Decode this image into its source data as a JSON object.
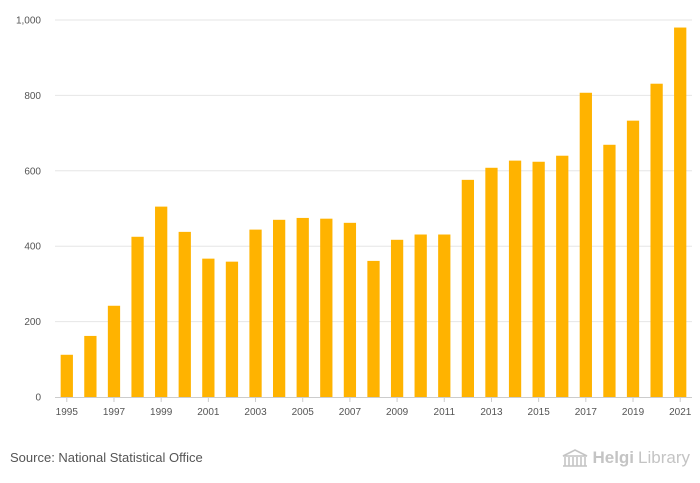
{
  "chart_data": {
    "type": "bar",
    "title": "",
    "xlabel": "",
    "ylabel": "",
    "categories": [
      "1995",
      "1996",
      "1997",
      "1998",
      "1999",
      "2000",
      "2001",
      "2002",
      "2003",
      "2004",
      "2005",
      "2006",
      "2007",
      "2008",
      "2009",
      "2010",
      "2011",
      "2012",
      "2013",
      "2014",
      "2015",
      "2016",
      "2017",
      "2018",
      "2019",
      "2020",
      "2021"
    ],
    "x_tick_labels": [
      "1995",
      "1997",
      "1999",
      "2001",
      "2003",
      "2005",
      "2007",
      "2009",
      "2011",
      "2013",
      "2015",
      "2017",
      "2019",
      "2021"
    ],
    "values": [
      112,
      162,
      242,
      425,
      505,
      438,
      367,
      359,
      444,
      470,
      475,
      473,
      462,
      361,
      417,
      431,
      431,
      576,
      608,
      627,
      624,
      640,
      807,
      669,
      733,
      831,
      980
    ],
    "ylim": [
      0,
      1000
    ],
    "y_ticks": [
      0,
      200,
      400,
      600,
      800,
      1000
    ],
    "y_tick_labels": [
      "0",
      "200",
      "400",
      "600",
      "800",
      "1,000"
    ],
    "grid": true,
    "bar_color": "#FFB300",
    "grid_color": "#e6e6e6"
  },
  "footer": {
    "source": "Source: National Statistical Office",
    "brand_part1": "Helgi",
    "brand_part2": "Library"
  }
}
